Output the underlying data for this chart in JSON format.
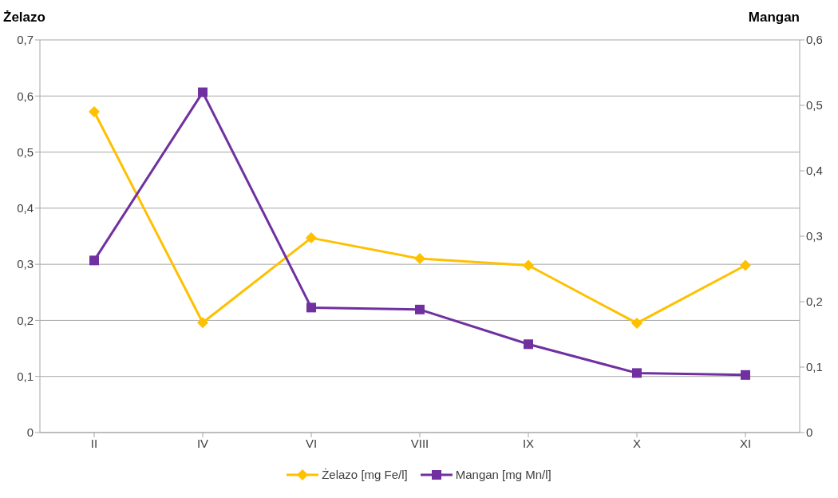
{
  "chart_data": {
    "type": "line",
    "ylabel": "Żelazo",
    "y2label": "Mangan",
    "categories": [
      "II",
      "IV",
      "VI",
      "VIII",
      "IX",
      "X",
      "XI"
    ],
    "series": [
      {
        "name": "Żelazo [mg Fe/l]",
        "color": "#ffc000",
        "marker": "diamond",
        "values": [
          0.572,
          0.196,
          0.347,
          0.31,
          0.298,
          0.195,
          0.298
        ]
      },
      {
        "name": "Mangan [mg Mn/l]",
        "color": "#7030a0",
        "marker": "square",
        "axis": "y2",
        "values": [
          0.263,
          0.52,
          0.191,
          0.188,
          0.135,
          0.091,
          0.088
        ]
      }
    ],
    "ylim": [
      0,
      0.7
    ],
    "yticks": [
      0,
      {
        "value": 0.1,
        "label": "0,1"
      },
      {
        "value": 0.2,
        "label": "0,2"
      },
      {
        "value": 0.3,
        "label": "0,3"
      },
      {
        "value": 0.4,
        "label": "0,4"
      },
      {
        "value": 0.5,
        "label": "0,5"
      },
      {
        "value": 0.6,
        "label": "0,6"
      },
      {
        "value": 0.7,
        "label": "0,7"
      }
    ],
    "y2lim": [
      0,
      0.6
    ],
    "y2ticks": [
      0,
      {
        "value": 0.1,
        "label": "0,1"
      },
      {
        "value": 0.2,
        "label": "0,2"
      },
      {
        "value": 0.3,
        "label": "0,3"
      },
      {
        "value": 0.4,
        "label": "0,4"
      },
      {
        "value": 0.5,
        "label": "0,5"
      },
      {
        "value": 0.6,
        "label": "0,6"
      }
    ],
    "grid": "y",
    "legend": "bottom",
    "line_style": "solid"
  }
}
